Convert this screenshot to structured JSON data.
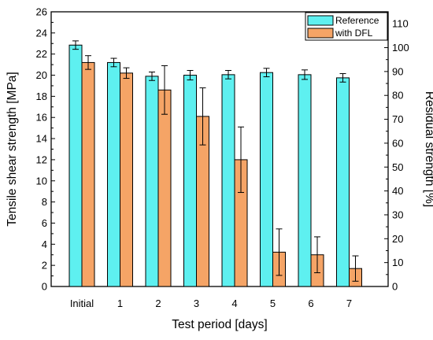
{
  "chart_data": {
    "type": "bar",
    "title": "",
    "xlabel": "Test period [days]",
    "ylabel": "Tensile shear strength [MPa]",
    "ylabel_right": "Residual strength [%]",
    "categories": [
      "Initial",
      "1",
      "2",
      "3",
      "4",
      "5",
      "6",
      "7"
    ],
    "ylim": [
      0,
      26
    ],
    "yticks": [
      "0",
      "2",
      "4",
      "6",
      "8",
      "10",
      "12",
      "14",
      "16",
      "18",
      "20",
      "22",
      "24",
      "26"
    ],
    "y2lim": [
      0,
      115
    ],
    "y2ticks": [
      "0",
      "10",
      "20",
      "30",
      "40",
      "50",
      "60",
      "70",
      "80",
      "90",
      "100",
      "110"
    ],
    "grid": false,
    "legend_position": "top-right",
    "series": [
      {
        "name": "Reference",
        "color": "#5ef0f0",
        "values": [
          22.85,
          21.2,
          19.9,
          20.0,
          20.05,
          20.25,
          20.05,
          19.75
        ],
        "errors": [
          0.4,
          0.4,
          0.4,
          0.45,
          0.4,
          0.4,
          0.45,
          0.4
        ]
      },
      {
        "name": "with DFL",
        "color": "#f5a466",
        "values": [
          21.2,
          20.2,
          18.6,
          16.1,
          12.0,
          3.25,
          3.0,
          1.7
        ],
        "errors": [
          0.65,
          0.5,
          2.3,
          2.7,
          3.1,
          2.2,
          1.7,
          1.2
        ]
      }
    ]
  }
}
